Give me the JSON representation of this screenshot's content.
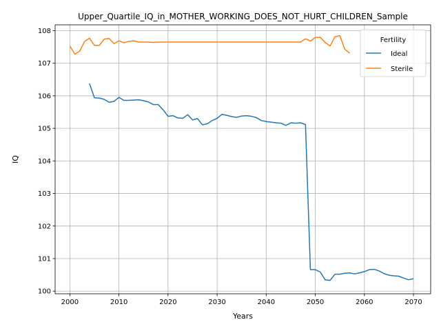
{
  "chart_data": {
    "type": "line",
    "title": "Upper_Quartile_IQ_in_MOTHER_WORKING_DOES_NOT_HURT_CHILDREN_Sample",
    "xlabel": "Years",
    "ylabel": "IQ",
    "xlim": [
      1997,
      2073.5
    ],
    "ylim": [
      99.92,
      108.18
    ],
    "xticks": [
      2000,
      2010,
      2020,
      2030,
      2040,
      2050,
      2060,
      2070
    ],
    "yticks": [
      100,
      101,
      102,
      103,
      104,
      105,
      106,
      107,
      108
    ],
    "grid": true,
    "legend": {
      "title": "Fertility",
      "placement": "top-right"
    },
    "series": [
      {
        "name": "Ideal",
        "color": "#1f77b4",
        "x": [
          2004,
          2005,
          2006,
          2007,
          2008,
          2009,
          2010,
          2011,
          2012,
          2013,
          2014,
          2015,
          2016,
          2017,
          2018,
          2019,
          2020,
          2021,
          2022,
          2023,
          2024,
          2025,
          2026,
          2027,
          2028,
          2029,
          2030,
          2031,
          2032,
          2033,
          2034,
          2035,
          2036,
          2037,
          2038,
          2039,
          2040,
          2041,
          2042,
          2043,
          2044,
          2045,
          2046,
          2047,
          2048,
          2049,
          2050,
          2051,
          2052,
          2053,
          2054,
          2055,
          2056,
          2057,
          2058,
          2059,
          2060,
          2061,
          2062,
          2063,
          2064,
          2065,
          2066,
          2067,
          2068,
          2069,
          2070
        ],
        "values": [
          106.38,
          105.94,
          105.93,
          105.89,
          105.8,
          105.83,
          105.95,
          105.86,
          105.86,
          105.87,
          105.88,
          105.85,
          105.81,
          105.73,
          105.73,
          105.57,
          105.37,
          105.39,
          105.32,
          105.31,
          105.42,
          105.26,
          105.3,
          105.11,
          105.14,
          105.24,
          105.31,
          105.43,
          105.4,
          105.36,
          105.34,
          105.38,
          105.39,
          105.37,
          105.33,
          105.24,
          105.21,
          105.19,
          105.17,
          105.16,
          105.09,
          105.17,
          105.16,
          105.17,
          105.12,
          100.66,
          100.66,
          100.59,
          100.35,
          100.33,
          100.52,
          100.52,
          100.55,
          100.56,
          100.53,
          100.56,
          100.6,
          100.66,
          100.67,
          100.62,
          100.54,
          100.49,
          100.47,
          100.46,
          100.4,
          100.35,
          100.38
        ]
      },
      {
        "name": "Sterile",
        "color": "#ff7f0e",
        "x": [
          2000,
          2001,
          2002,
          2003,
          2004,
          2005,
          2006,
          2007,
          2008,
          2009,
          2010,
          2011,
          2012,
          2013,
          2014,
          2015,
          2016,
          2017,
          2018,
          2019,
          2020,
          2021,
          2022,
          2023,
          2024,
          2025,
          2026,
          2027,
          2028,
          2029,
          2030,
          2031,
          2032,
          2033,
          2034,
          2035,
          2036,
          2037,
          2038,
          2039,
          2040,
          2041,
          2042,
          2043,
          2044,
          2045,
          2046,
          2047,
          2048,
          2049,
          2050,
          2051,
          2052,
          2053,
          2054,
          2055,
          2056,
          2057
        ],
        "values": [
          107.53,
          107.28,
          107.37,
          107.67,
          107.77,
          107.55,
          107.55,
          107.74,
          107.76,
          107.6,
          107.69,
          107.63,
          107.67,
          107.69,
          107.65,
          107.65,
          107.65,
          107.64,
          107.65,
          107.65,
          107.65,
          107.65,
          107.65,
          107.65,
          107.65,
          107.65,
          107.65,
          107.65,
          107.65,
          107.65,
          107.65,
          107.65,
          107.65,
          107.65,
          107.65,
          107.65,
          107.65,
          107.65,
          107.65,
          107.65,
          107.65,
          107.65,
          107.65,
          107.65,
          107.65,
          107.65,
          107.65,
          107.65,
          107.75,
          107.68,
          107.79,
          107.8,
          107.64,
          107.53,
          107.81,
          107.85,
          107.43,
          107.31
        ]
      }
    ]
  }
}
